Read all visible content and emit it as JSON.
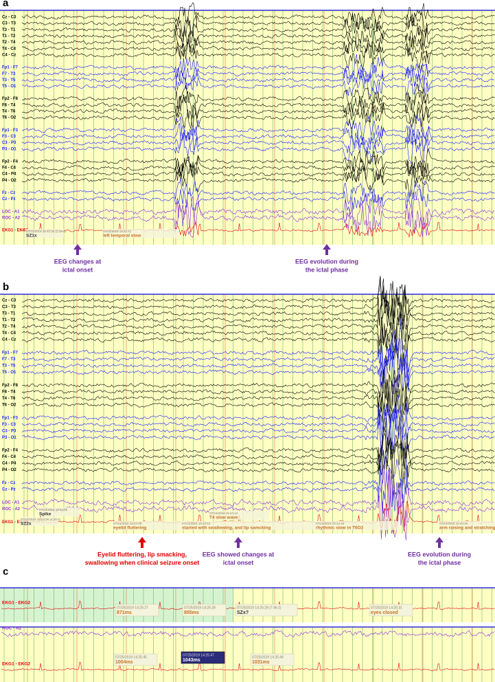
{
  "panels": [
    {
      "letter": "a",
      "channels": [
        {
          "name": "Cz - C3",
          "color": "#000000"
        },
        {
          "name": "C3 - T3",
          "color": "#000000"
        },
        {
          "name": "T3 - T1",
          "color": "#000000"
        },
        {
          "name": "T1 - T2",
          "color": "#000000"
        },
        {
          "name": "T2 - T4",
          "color": "#000000"
        },
        {
          "name": "T4 - C4",
          "color": "#000000"
        },
        {
          "name": "C4 - Cz",
          "color": "#000000"
        },
        {
          "name": "Fp1 - F7",
          "color": "#1a1aff"
        },
        {
          "name": "F7 - T3",
          "color": "#1a1aff"
        },
        {
          "name": "T3 - T5",
          "color": "#1a1aff"
        },
        {
          "name": "T5 - O1",
          "color": "#1a1aff"
        },
        {
          "name": "Fp2 - F8",
          "color": "#000000"
        },
        {
          "name": "F8 - T4",
          "color": "#000000"
        },
        {
          "name": "T4 - T6",
          "color": "#000000"
        },
        {
          "name": "T6 - O2",
          "color": "#000000"
        },
        {
          "name": "Fp1 - F3",
          "color": "#1a1aff"
        },
        {
          "name": "F3 - C3",
          "color": "#1a1aff"
        },
        {
          "name": "C3 - P3",
          "color": "#1a1aff"
        },
        {
          "name": "P3 - O1",
          "color": "#1a1aff"
        },
        {
          "name": "Fp2 - F4",
          "color": "#000000"
        },
        {
          "name": "F4 - C4",
          "color": "#000000"
        },
        {
          "name": "C4 - P4",
          "color": "#000000"
        },
        {
          "name": "P4 - O2",
          "color": "#000000"
        },
        {
          "name": "Fz - Cz",
          "color": "#1a1aff"
        },
        {
          "name": "Cz - Pz",
          "color": "#1a1aff"
        },
        {
          "name": "LOC - A1",
          "color": "#8a2be2"
        },
        {
          "name": "ROC - A2",
          "color": "#8a2be2"
        },
        {
          "name": "EKG1 - EKG2",
          "color": "#e8000b"
        }
      ],
      "annotations": [
        {
          "time": "07/23/2019 19:40:30 (2:29:4)",
          "text": "SZ1x",
          "color": "#303030"
        },
        {
          "time": "07/23/2019 19:40:41",
          "text": "left temporal slow",
          "color": "#c87020"
        }
      ],
      "captions": [
        {
          "lines": [
            "EEG changes at",
            "ictal onset"
          ],
          "color": "#7030a0"
        },
        {
          "lines": [
            "EEG evolution during",
            "the ictal phase"
          ],
          "color": "#7030a0"
        }
      ]
    },
    {
      "letter": "b",
      "channels": [
        {
          "name": "Cz - C3",
          "color": "#000000"
        },
        {
          "name": "C3 - T3",
          "color": "#000000"
        },
        {
          "name": "T3 - T1",
          "color": "#000000"
        },
        {
          "name": "T1 - T2",
          "color": "#000000"
        },
        {
          "name": "T2 - T4",
          "color": "#000000"
        },
        {
          "name": "T4 - C4",
          "color": "#000000"
        },
        {
          "name": "C4 - Cz",
          "color": "#000000"
        },
        {
          "name": "Fp1 - F7",
          "color": "#1a1aff"
        },
        {
          "name": "F7 - T3",
          "color": "#1a1aff"
        },
        {
          "name": "T3 - T5",
          "color": "#1a1aff"
        },
        {
          "name": "T5 - O1",
          "color": "#1a1aff"
        },
        {
          "name": "Fp2 - F8",
          "color": "#000000"
        },
        {
          "name": "F8 - T4",
          "color": "#000000"
        },
        {
          "name": "T4 - T6",
          "color": "#000000"
        },
        {
          "name": "T6 - O2",
          "color": "#000000"
        },
        {
          "name": "Fp1 - F3",
          "color": "#1a1aff"
        },
        {
          "name": "F3 - C3",
          "color": "#1a1aff"
        },
        {
          "name": "C3 - P3",
          "color": "#1a1aff"
        },
        {
          "name": "P3 - O1",
          "color": "#1a1aff"
        },
        {
          "name": "Fp2 - F4",
          "color": "#000000"
        },
        {
          "name": "F4 - C4",
          "color": "#000000"
        },
        {
          "name": "C4 - P4",
          "color": "#000000"
        },
        {
          "name": "P4 - O2",
          "color": "#000000"
        },
        {
          "name": "Fz - Cz",
          "color": "#1a1aff"
        },
        {
          "name": "Cz - Pz",
          "color": "#1a1aff"
        },
        {
          "name": "LOC - A1",
          "color": "#8a2be2"
        },
        {
          "name": "ROC - A2",
          "color": "#8a2be2"
        },
        {
          "name": "EKG1 - EKG2",
          "color": "#e8000b"
        }
      ],
      "annotations": [
        {
          "time": "07/24/2019 15:44:06",
          "text": "Spike",
          "color": "#303030"
        },
        {
          "time": "07/24/2019 15:44:06 (4:26:3)",
          "text": "SZ2x",
          "color": "#303030"
        },
        {
          "time": "07/24/2019 15:44:08",
          "text": "eyelid fluttering",
          "color": "#c87020"
        },
        {
          "time": "07/24/2019 15:44:12",
          "text": "started with swallowing, and lip samcking",
          "color": "#c87020"
        },
        {
          "time": "07/24/2019 15:44:13",
          "text": "T4 slow wave",
          "color": "#c87020"
        },
        {
          "time": "07/24/2019 15:44:18",
          "text": "rhythmic slow in T6O2",
          "color": "#c87020"
        },
        {
          "time": "07/24/2019 15:44:30",
          "text": "arm raising and stratching",
          "color": "#c87020"
        }
      ],
      "captions": [
        {
          "lines": [
            "Eyelid fluttering, lip smacking,",
            "swallowing when clinical seizure onset"
          ],
          "color": "#e00000"
        },
        {
          "lines": [
            "EEG showed changes at",
            "ictal onset"
          ],
          "color": "#7030a0"
        },
        {
          "lines": [
            "EEG evolution during",
            "the ictal phase"
          ],
          "color": "#7030a0"
        }
      ]
    },
    {
      "letter": "c",
      "strips": [
        {
          "channels": [
            {
              "name": "EKG1 - EKG2",
              "color": "#e8000b"
            }
          ],
          "annotations": [
            {
              "time": "07/25/2019 14:25:27",
              "text": "871ms",
              "color": "#c87020"
            },
            {
              "time": "07/25/2019 14:25:28",
              "text": "855ms",
              "color": "#c87020"
            },
            {
              "time": "07/25/2019 14:25:29 (7:46:2)",
              "text": "SZx?",
              "color": "#303030"
            },
            {
              "time": "07/25/2019 14:25:31",
              "text": "eyes closed",
              "color": "#c87020"
            }
          ]
        },
        {
          "channels": [
            {
              "name": "ROC - A2",
              "color": "#8a2be2"
            },
            {
              "name": "EKG1 - EKG2",
              "color": "#e8000b"
            }
          ],
          "annotations": [
            {
              "time": "07/25/2019 14:25:45",
              "text": "1004ms",
              "color": "#c87020"
            },
            {
              "time": "07/25/2019 14:25:47",
              "text": "1043ms",
              "color": "#ffffff"
            },
            {
              "time": "07/25/2019 14:25:49",
              "text": "1031ms",
              "color": "#c87020"
            }
          ]
        }
      ]
    }
  ]
}
